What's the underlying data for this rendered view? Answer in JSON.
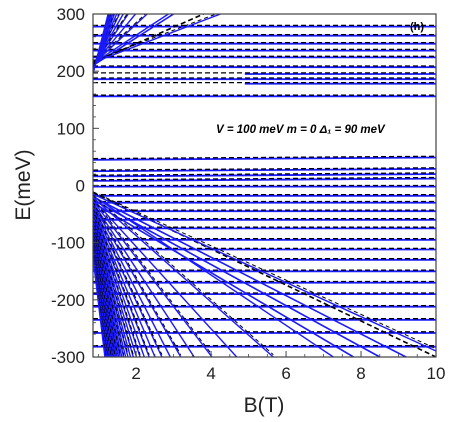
{
  "chart_data": {
    "type": "line",
    "panel_label": "(h)",
    "annotation": "V = 100 meV   m = 0   Δ₁ = 90 meV",
    "xlabel": "B(T)",
    "ylabel": "E(meV)",
    "xlim": [
      0.85,
      10
    ],
    "ylim": [
      -300,
      300
    ],
    "x_ticks": [
      2,
      4,
      6,
      8,
      10
    ],
    "y_ticks": [
      -300,
      -200,
      -100,
      0,
      100,
      200,
      300
    ],
    "grid": false,
    "colors": {
      "solid_series": "#1a1aff",
      "dashed_series": "#000000"
    },
    "series": [
      {
        "style": "solid-blue",
        "flat_levels_meV": [
          278,
          262,
          248,
          236,
          224,
          207,
          195,
          186,
          178,
          156,
          45,
          25,
          16,
          8,
          -2,
          -18,
          -30,
          -45,
          -60,
          -75,
          -95,
          -112,
          -130,
          -150,
          -170,
          -190,
          -212,
          -235,
          -258,
          -282
        ]
      },
      {
        "style": "dashed-black",
        "flat_levels_meV": [
          280,
          264,
          250,
          238,
          226,
          209,
          197,
          188,
          180,
          158,
          47,
          27,
          18,
          10,
          0,
          -16,
          -28,
          -43,
          -58,
          -73,
          -93,
          -110,
          -128,
          -148,
          -168,
          -188,
          -210,
          -233,
          -256,
          -280
        ]
      },
      {
        "style": "solid-blue",
        "band_edge_lines": [
          {
            "x": [
              0.85,
              9.2
            ],
            "y": [
              -20,
              -300
            ]
          },
          {
            "x": [
              0.85,
              8.5
            ],
            "y": [
              -25,
              -300
            ]
          },
          {
            "x": [
              0.85,
              7.8
            ],
            "y": [
              -30,
              -300
            ]
          },
          {
            "x": [
              0.85,
              3.0
            ],
            "y": [
              210,
              300
            ]
          }
        ]
      },
      {
        "style": "dashed-black",
        "band_edge_lines": [
          {
            "x": [
              0.85,
              10.0
            ],
            "y": [
              -12,
              -300
            ]
          },
          {
            "x": [
              0.85,
              3.8
            ],
            "y": [
              215,
              300
            ]
          }
        ]
      }
    ]
  }
}
